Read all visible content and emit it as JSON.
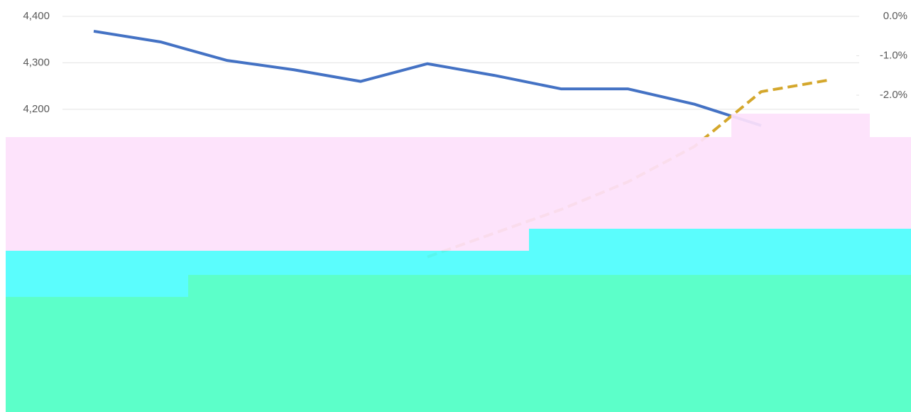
{
  "chart_data": {
    "type": "line",
    "categories": [
      null,
      null,
      null,
      null,
      null,
      null,
      null,
      null,
      null,
      null,
      null,
      null
    ],
    "series": [
      {
        "color": "#4472c4",
        "values": [
          4368,
          4345,
          4305,
          4285,
          4260,
          4298,
          4273,
          4244,
          4244,
          4211,
          4165,
          null
        ]
      },
      {
        "color": "#d4a72c",
        "axis": "y2",
        "dashed": true,
        "values": [
          null,
          null,
          null,
          null,
          null,
          -6.1,
          -5.5,
          -4.9,
          -4.2,
          -3.3,
          -1.91,
          -1.62
        ]
      }
    ],
    "ylim": [
      3700,
      4400
    ],
    "yticks": [
      {
        "value": 4200,
        "label": "4,200"
      },
      {
        "value": 4300,
        "label": "4,300"
      },
      {
        "value": 4400,
        "label": "4,400"
      }
    ],
    "y2lim": [
      -8.25,
      0
    ],
    "y2ticks": [
      {
        "value": 0,
        "label": "0.0%"
      },
      {
        "value": -1,
        "label": "-1.0%"
      },
      {
        "value": -2,
        "label": "-2.0%"
      }
    ],
    "grid": true
  }
}
